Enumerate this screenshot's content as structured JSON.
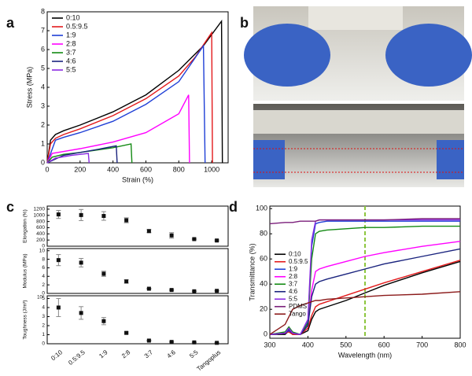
{
  "photo_panel": {
    "label": "b"
  },
  "chart_data": [
    {
      "type": "line",
      "panel_label": "a",
      "xlabel": "Strain (%)",
      "ylabel": "Stress (MPa)",
      "xlim": [
        0,
        1100
      ],
      "xticks": [
        0,
        200,
        400,
        600,
        800,
        1000
      ],
      "ylim": [
        0,
        8
      ],
      "yticks": [
        0,
        1,
        2,
        3,
        4,
        5,
        6,
        7,
        8
      ],
      "legend": "upper left",
      "series": [
        {
          "name": "0:10",
          "color": "#000000",
          "x": [
            0,
            20,
            50,
            100,
            200,
            400,
            600,
            800,
            950,
            1060,
            1065
          ],
          "values": [
            0,
            1.2,
            1.5,
            1.7,
            2.0,
            2.7,
            3.6,
            4.9,
            6.2,
            7.5,
            0
          ]
        },
        {
          "name": "0.5:9.5",
          "color": "#e31a1c",
          "x": [
            0,
            20,
            50,
            100,
            200,
            400,
            600,
            800,
            900,
            1000,
            1005
          ],
          "values": [
            0,
            1.0,
            1.3,
            1.5,
            1.8,
            2.5,
            3.4,
            4.6,
            5.6,
            6.9,
            0
          ]
        },
        {
          "name": "1:9",
          "color": "#1f3fd6",
          "x": [
            0,
            50,
            100,
            200,
            400,
            600,
            800,
            950,
            960
          ],
          "values": [
            0,
            1.2,
            1.35,
            1.6,
            2.2,
            3.1,
            4.3,
            6.2,
            0
          ]
        },
        {
          "name": "2:8",
          "color": "#ff00ff",
          "x": [
            0,
            30,
            100,
            200,
            400,
            600,
            800,
            860,
            865
          ],
          "values": [
            0,
            0.5,
            0.6,
            0.75,
            1.1,
            1.6,
            2.6,
            3.6,
            0
          ]
        },
        {
          "name": "3:7",
          "color": "#138a13",
          "x": [
            0,
            30,
            100,
            200,
            400,
            510,
            515
          ],
          "values": [
            0,
            0.3,
            0.45,
            0.55,
            0.8,
            1.0,
            0
          ]
        },
        {
          "name": "4:6",
          "color": "#1a237e",
          "x": [
            0,
            100,
            200,
            300,
            420,
            425
          ],
          "values": [
            0,
            0.4,
            0.55,
            0.7,
            0.9,
            0
          ]
        },
        {
          "name": "5:5",
          "color": "#8a2be2",
          "x": [
            0,
            50,
            150,
            250,
            255
          ],
          "values": [
            0,
            0.25,
            0.4,
            0.5,
            0
          ]
        }
      ]
    },
    {
      "type": "scatter",
      "panel_label": "c",
      "ylabel": "Elongation (%)",
      "ylim": [
        0,
        1300
      ],
      "yticks": [
        0,
        200,
        400,
        600,
        800,
        1000,
        1200
      ],
      "color": "#111111",
      "values": [
        1030,
        1010,
        980,
        840,
        490,
        350,
        230,
        185
      ],
      "errors": [
        130,
        180,
        140,
        80,
        50,
        90,
        20,
        20
      ]
    },
    {
      "type": "scatter",
      "ylabel": "Modulus (MPa)",
      "ylim": [
        0,
        10.5
      ],
      "yticks": [
        0,
        2,
        4,
        6,
        8,
        10
      ],
      "color": "#111111",
      "values": [
        7.8,
        7.2,
        4.6,
        2.8,
        1.1,
        0.8,
        0.5,
        0.6
      ],
      "errors": [
        1.3,
        1.0,
        0.6,
        0.4,
        0.1,
        0.1,
        0.05,
        0.05
      ]
    },
    {
      "type": "scatter",
      "ylabel": "Toughness (J/m³)",
      "multiplier": "10⁷",
      "ylim": [
        0,
        5.3
      ],
      "yticks": [
        0,
        1,
        2,
        3,
        4,
        5
      ],
      "categories": [
        "0:10",
        "0.5:9.5",
        "1:9",
        "2:8",
        "3:7",
        "4:6",
        "5:5",
        "Tangoplus"
      ],
      "color": "#111111",
      "values": [
        4.0,
        3.4,
        2.5,
        1.2,
        0.35,
        0.2,
        0.15,
        0.1
      ],
      "errors": [
        1.0,
        0.7,
        0.4,
        0.1,
        0.05,
        0.03,
        0.03,
        0.02
      ]
    },
    {
      "type": "line",
      "panel_label": "d",
      "xlabel": "Wavelength (nm)",
      "ylabel": "Transmittance (%)",
      "xlim": [
        300,
        800
      ],
      "xticks": [
        300,
        400,
        500,
        600,
        700,
        800
      ],
      "ylim": [
        -3,
        102
      ],
      "yticks": [
        0,
        20,
        40,
        60,
        80,
        100
      ],
      "legend": "center left",
      "vline": 550,
      "vline_color": "#8dc63f",
      "x": [
        300,
        340,
        350,
        360,
        380,
        400,
        410,
        420,
        430,
        450,
        500,
        550,
        600,
        700,
        800
      ],
      "series": [
        {
          "name": "0:10",
          "color": "#000000",
          "values": [
            0,
            0,
            3,
            0,
            0,
            3,
            12,
            18,
            20,
            22,
            27,
            33,
            39,
            49,
            58
          ]
        },
        {
          "name": "0.5:9.5",
          "color": "#e31a1c",
          "values": [
            0,
            1,
            2,
            0,
            0,
            5,
            15,
            22,
            24,
            26,
            31,
            36,
            41,
            50,
            59
          ]
        },
        {
          "name": "1:9",
          "color": "#1f3fd6",
          "values": [
            0,
            1,
            3,
            1,
            0,
            10,
            70,
            88,
            89,
            90,
            90,
            90,
            90,
            90,
            90
          ]
        },
        {
          "name": "2:8",
          "color": "#ff00ff",
          "values": [
            0,
            1,
            4,
            1,
            0,
            8,
            35,
            50,
            52,
            54,
            58,
            62,
            65,
            70,
            74
          ]
        },
        {
          "name": "3:7",
          "color": "#138a13",
          "values": [
            0,
            2,
            6,
            2,
            0,
            9,
            60,
            80,
            82,
            83,
            84,
            85,
            85,
            86,
            86
          ]
        },
        {
          "name": "4:6",
          "color": "#1a237e",
          "values": [
            0,
            1,
            4,
            1,
            0,
            7,
            30,
            40,
            42,
            44,
            48,
            52,
            56,
            62,
            68
          ]
        },
        {
          "name": "5:5",
          "color": "#8a2be2",
          "values": [
            0,
            1,
            5,
            1,
            0,
            12,
            75,
            90,
            91,
            91,
            91,
            91,
            91,
            91,
            91
          ]
        },
        {
          "name": "PDMS",
          "color": "#7b1f7b",
          "values": [
            88,
            89,
            89,
            89,
            90,
            90,
            90,
            90,
            91,
            91,
            91,
            91,
            91,
            92,
            92
          ]
        },
        {
          "name": "Tango",
          "color": "#8b1a1a",
          "values": [
            0,
            8,
            14,
            20,
            23,
            25,
            26,
            27,
            27,
            28,
            29,
            30,
            31,
            32,
            34
          ]
        }
      ]
    }
  ]
}
